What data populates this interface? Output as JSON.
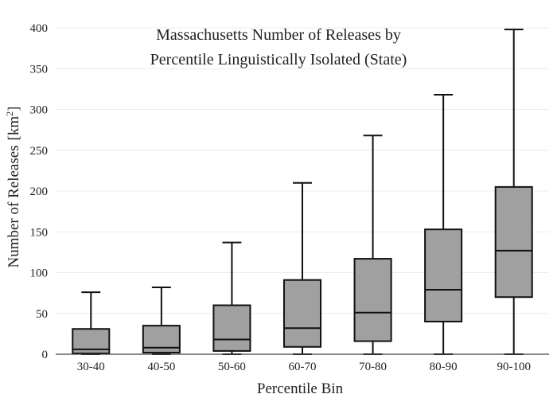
{
  "chart_data": {
    "type": "box",
    "title_lines": [
      "Massachusetts Number of Releases by",
      "Percentile Linguistically Isolated (State)"
    ],
    "xlabel": "Percentile Bin",
    "ylabel": "Number of Releases",
    "ylabel_unit_base": "km",
    "ylabel_unit_exp": "2",
    "ylim": [
      0,
      400
    ],
    "yticks": [
      0,
      50,
      100,
      150,
      200,
      250,
      300,
      350,
      400
    ],
    "grid": true,
    "legend": "none",
    "box_color": "#a0a0a0",
    "line_color": "#111111",
    "categories": [
      "30-40",
      "40-50",
      "50-60",
      "60-70",
      "70-80",
      "80-90",
      "90-100"
    ],
    "boxes": [
      {
        "min": 0,
        "q1": 1,
        "median": 6,
        "q3": 31,
        "max": 76
      },
      {
        "min": 0,
        "q1": 2,
        "median": 8,
        "q3": 35,
        "max": 82
      },
      {
        "min": 0,
        "q1": 4,
        "median": 18,
        "q3": 60,
        "max": 137
      },
      {
        "min": 0,
        "q1": 9,
        "median": 32,
        "q3": 91,
        "max": 210
      },
      {
        "min": 0,
        "q1": 16,
        "median": 51,
        "q3": 117,
        "max": 268
      },
      {
        "min": 0,
        "q1": 40,
        "median": 79,
        "q3": 153,
        "max": 318
      },
      {
        "min": 0,
        "q1": 70,
        "median": 127,
        "q3": 205,
        "max": 398
      }
    ]
  }
}
